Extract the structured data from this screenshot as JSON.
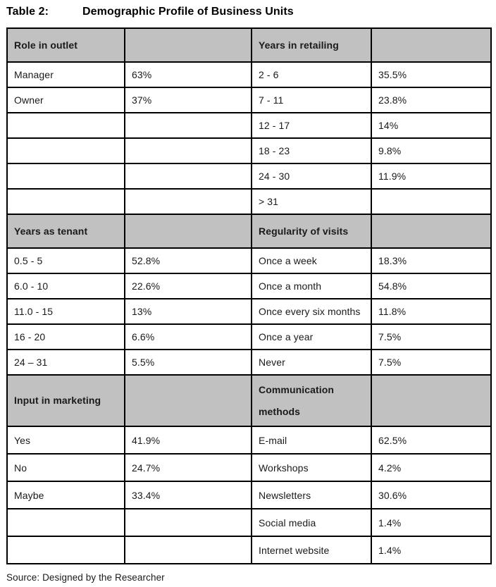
{
  "title": {
    "label": "Table 2:",
    "text": "Demographic Profile of Business Units"
  },
  "source": "Source: Designed by the Researcher",
  "colors": {
    "header_bg": "#c1c1c1",
    "border": "#000000",
    "text": "#1a1a1a"
  },
  "sections": [
    {
      "left_header": "Role in outlet",
      "right_header": "Years in retailing",
      "rows": [
        [
          "Manager",
          "63%",
          "2 - 6",
          "35.5%"
        ],
        [
          "Owner",
          "37%",
          "7 - 11",
          "23.8%"
        ],
        [
          "",
          "",
          "12 - 17",
          "14%"
        ],
        [
          "",
          "",
          "18 - 23",
          "9.8%"
        ],
        [
          "",
          "",
          "24 - 30",
          "11.9%"
        ],
        [
          "",
          "",
          "> 31",
          ""
        ]
      ]
    },
    {
      "left_header": "Years as tenant",
      "right_header": "Regularity of visits",
      "rows": [
        [
          "0.5 - 5",
          "52.8%",
          "Once a week",
          "18.3%"
        ],
        [
          "6.0 - 10",
          "22.6%",
          "Once a month",
          "54.8%"
        ],
        [
          "11.0 - 15",
          "13%",
          "Once every six months",
          "11.8%"
        ],
        [
          "16 - 20",
          "6.6%",
          "Once a year",
          "7.5%"
        ],
        [
          "24 – 31",
          "5.5%",
          "Never",
          "7.5%"
        ]
      ]
    },
    {
      "left_header": "Input in marketing",
      "right_header": "Communication methods",
      "rows": [
        [
          "Yes",
          "41.9%",
          "E-mail",
          "62.5%"
        ],
        [
          "No",
          "24.7%",
          "Workshops",
          "4.2%"
        ],
        [
          "Maybe",
          "33.4%",
          "Newsletters",
          "30.6%"
        ],
        [
          "",
          "",
          "Social media",
          "1.4%"
        ],
        [
          "",
          "",
          "Internet website",
          "1.4%"
        ]
      ]
    }
  ]
}
